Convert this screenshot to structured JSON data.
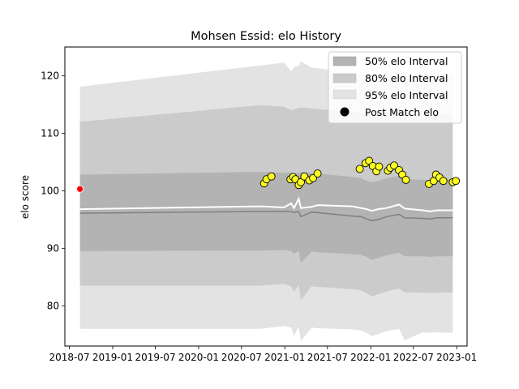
{
  "chart_data": {
    "type": "area",
    "title": "Mohsen Essid: elo History",
    "xlabel": "",
    "ylabel": "elo score",
    "xlim": [
      "2018-06-12",
      "2023-02-14"
    ],
    "ylim": [
      73,
      125
    ],
    "x_ticks": [
      "2018-07",
      "2019-01",
      "2019-07",
      "2020-01",
      "2020-07",
      "2021-01",
      "2021-07",
      "2022-01",
      "2022-07",
      "2023-01"
    ],
    "y_ticks": [
      80,
      90,
      100,
      110,
      120
    ],
    "legend": {
      "position": "top-right",
      "entries": [
        "50% elo Interval",
        "80% elo Interval",
        "95% elo Interval",
        "Post Match elo"
      ]
    },
    "bands": {
      "x": [
        "2018-08-15",
        "2020-09-20",
        "2020-12-28",
        "2021-01-28",
        "2021-02-09",
        "2021-03-01",
        "2021-03-10",
        "2021-04-25",
        "2021-05-20",
        "2021-10-15",
        "2021-11-20",
        "2021-12-15",
        "2022-01-05",
        "2022-02-01",
        "2022-03-10",
        "2022-05-01",
        "2022-05-25",
        "2022-08-10",
        "2022-09-10",
        "2022-10-10",
        "2022-12-15"
      ],
      "mean": [
        96.1,
        96.4,
        96.4,
        96.4,
        96.2,
        96.4,
        95.5,
        96.3,
        96.2,
        95.6,
        95.5,
        95.1,
        94.8,
        95.0,
        95.5,
        95.9,
        95.3,
        95.2,
        95.1,
        95.3,
        95.3
      ],
      "p50_lo": [
        89.5,
        89.6,
        89.7,
        89.5,
        89.0,
        89.6,
        87.5,
        89.4,
        89.3,
        89.0,
        88.9,
        88.5,
        88.0,
        88.3,
        88.8,
        89.2,
        88.6,
        88.6,
        88.5,
        88.6,
        88.6
      ],
      "p50_hi": [
        102.8,
        103.3,
        103.1,
        103.2,
        103.0,
        103.1,
        103.3,
        103.1,
        103.0,
        102.4,
        102.2,
        101.7,
        101.5,
        101.7,
        102.2,
        102.6,
        102.0,
        101.9,
        101.8,
        102.0,
        102.0
      ],
      "p80_lo": [
        83.5,
        83.5,
        83.8,
        83.4,
        82.5,
        83.6,
        81.0,
        83.4,
        83.3,
        82.9,
        82.7,
        82.2,
        81.6,
        82.0,
        82.5,
        83.0,
        82.3,
        82.3,
        82.2,
        82.3,
        82.3
      ],
      "p80_hi": [
        112.0,
        114.9,
        114.6,
        114.0,
        114.2,
        114.4,
        114.5,
        114.3,
        114.2,
        113.7,
        113.6,
        113.4,
        113.2,
        113.4,
        113.7,
        113.9,
        113.4,
        113.3,
        113.2,
        113.3,
        113.3
      ],
      "p95_lo": [
        76.0,
        76.0,
        76.5,
        76.2,
        74.8,
        76.4,
        73.8,
        76.2,
        76.1,
        75.9,
        75.7,
        75.3,
        74.7,
        75.1,
        75.6,
        76.0,
        74.0,
        75.4,
        75.3,
        75.4,
        75.3
      ],
      "p95_hi": [
        118.1,
        121.8,
        122.3,
        120.8,
        121.5,
        121.7,
        122.5,
        121.4,
        121.3,
        120.5,
        120.4,
        120.2,
        120.0,
        120.2,
        120.4,
        120.6,
        120.2,
        120.1,
        120.0,
        120.1,
        120.1
      ]
    },
    "post_match_line": {
      "x": [
        "2018-08-15",
        "2020-09-20",
        "2020-12-28",
        "2021-01-28",
        "2021-02-09",
        "2021-03-01",
        "2021-03-10",
        "2021-04-25",
        "2021-05-20",
        "2021-10-15",
        "2021-11-20",
        "2021-12-15",
        "2022-01-05",
        "2022-02-01",
        "2022-03-10",
        "2022-05-01",
        "2022-05-25",
        "2022-08-10",
        "2022-09-10",
        "2022-10-10",
        "2022-12-15"
      ],
      "y": [
        96.8,
        97.3,
        97.1,
        97.8,
        97.0,
        98.6,
        97.0,
        97.2,
        97.5,
        97.3,
        97.0,
        96.8,
        96.5,
        96.8,
        97.0,
        97.6,
        96.9,
        96.6,
        96.4,
        96.6,
        96.6
      ]
    },
    "first_point": {
      "x": "2018-08-15",
      "y": 100.3
    },
    "post_match_points": [
      {
        "x": "2020-10-05",
        "y": 101.3
      },
      {
        "x": "2020-10-15",
        "y": 102.0
      },
      {
        "x": "2020-11-05",
        "y": 102.5
      },
      {
        "x": "2021-01-25",
        "y": 102.0
      },
      {
        "x": "2021-02-05",
        "y": 102.4
      },
      {
        "x": "2021-02-15",
        "y": 102.0
      },
      {
        "x": "2021-03-01",
        "y": 101.0
      },
      {
        "x": "2021-03-10",
        "y": 101.5
      },
      {
        "x": "2021-03-25",
        "y": 102.5
      },
      {
        "x": "2021-04-15",
        "y": 101.8
      },
      {
        "x": "2021-05-01",
        "y": 102.2
      },
      {
        "x": "2021-05-20",
        "y": 103.0
      },
      {
        "x": "2021-11-15",
        "y": 103.8
      },
      {
        "x": "2021-12-10",
        "y": 104.8
      },
      {
        "x": "2021-12-25",
        "y": 105.2
      },
      {
        "x": "2022-01-10",
        "y": 104.3
      },
      {
        "x": "2022-01-25",
        "y": 103.4
      },
      {
        "x": "2022-02-05",
        "y": 104.2
      },
      {
        "x": "2022-03-15",
        "y": 103.5
      },
      {
        "x": "2022-03-25",
        "y": 104.0
      },
      {
        "x": "2022-04-10",
        "y": 104.4
      },
      {
        "x": "2022-05-01",
        "y": 103.6
      },
      {
        "x": "2022-05-15",
        "y": 102.8
      },
      {
        "x": "2022-05-30",
        "y": 101.9
      },
      {
        "x": "2022-09-05",
        "y": 101.2
      },
      {
        "x": "2022-09-25",
        "y": 101.7
      },
      {
        "x": "2022-10-05",
        "y": 102.8
      },
      {
        "x": "2022-10-20",
        "y": 102.3
      },
      {
        "x": "2022-11-05",
        "y": 101.7
      },
      {
        "x": "2022-12-15",
        "y": 101.5
      },
      {
        "x": "2022-12-28",
        "y": 101.7
      }
    ],
    "colors": {
      "p95": "#e3e3e3",
      "p80": "#cbcbcb",
      "p50": "#b3b3b3",
      "mean_line": "#808080",
      "post_match_line": "#ffffff",
      "points": "#ffff22",
      "first_point": "#ff0000"
    }
  }
}
